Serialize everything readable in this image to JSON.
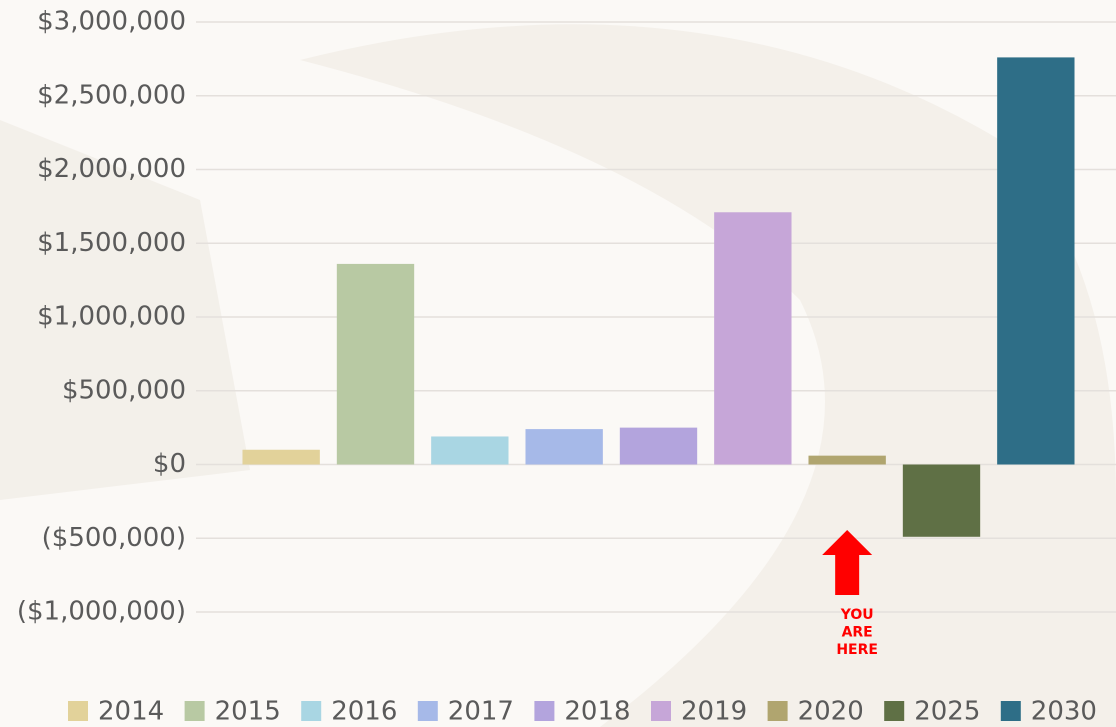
{
  "chart_data": {
    "type": "bar",
    "series": [
      {
        "name": "2014",
        "color": "#e2d29a",
        "values": [
          100000
        ]
      },
      {
        "name": "2015",
        "color": "#b8c9a3",
        "values": [
          1360000
        ]
      },
      {
        "name": "2016",
        "color": "#a9d6e3",
        "values": [
          190000
        ]
      },
      {
        "name": "2017",
        "color": "#a6b9e8",
        "values": [
          240000
        ]
      },
      {
        "name": "2018",
        "color": "#b3a4dd",
        "values": [
          250000
        ]
      },
      {
        "name": "2019",
        "color": "#c6a6d8",
        "values": [
          1710000
        ]
      },
      {
        "name": "2020",
        "color": "#b0a56f",
        "values": [
          60000
        ]
      },
      {
        "name": "2025",
        "color": "#5f7045",
        "values": [
          -490000
        ]
      },
      {
        "name": "2030",
        "color": "#2e6e87",
        "values": [
          2760000
        ]
      }
    ],
    "ylim": [
      -1000000,
      3000000
    ],
    "yticks": [
      {
        "value": -1000000,
        "label": "($1,000,000)"
      },
      {
        "value": -500000,
        "label": "($500,000)"
      },
      {
        "value": 0,
        "label": "$0"
      },
      {
        "value": 500000,
        "label": "$500,000"
      },
      {
        "value": 1000000,
        "label": "$1,000,000"
      },
      {
        "value": 1500000,
        "label": "$1,500,000"
      },
      {
        "value": 2000000,
        "label": "$2,000,000"
      },
      {
        "value": 2500000,
        "label": "$2,500,000"
      },
      {
        "value": 3000000,
        "label": "$3,000,000"
      }
    ],
    "grid": true,
    "legend": "bottom",
    "annotation": [
      "YOU",
      "ARE",
      "HERE"
    ],
    "annotation_color": "#ff0000"
  }
}
